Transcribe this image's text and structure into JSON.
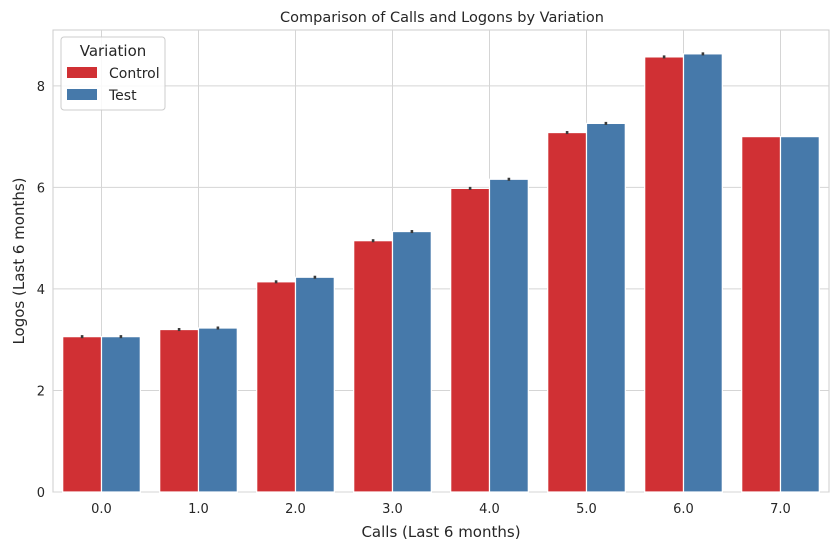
{
  "chart_data": {
    "type": "bar",
    "title": "Comparison of Calls and Logons by Variation",
    "xlabel": "Calls (Last 6 months)",
    "ylabel": "Logos (Last 6 months)",
    "categories": [
      "0.0",
      "1.0",
      "2.0",
      "3.0",
      "4.0",
      "5.0",
      "6.0",
      "7.0"
    ],
    "yticks": [
      "0",
      "2",
      "4",
      "6",
      "8"
    ],
    "ylim": [
      0,
      9.1
    ],
    "grid": true,
    "legend": {
      "title": "Variation",
      "placement": "top-left"
    },
    "series": [
      {
        "name": "Control",
        "color": "#d03034",
        "values": [
          3.06,
          3.2,
          4.14,
          4.95,
          5.98,
          7.08,
          8.57,
          7.0
        ],
        "error": [
          0.03,
          0.03,
          0.03,
          0.03,
          0.03,
          0.03,
          0.03,
          0.0
        ]
      },
      {
        "name": "Test",
        "color": "#4679aa",
        "values": [
          3.06,
          3.23,
          4.23,
          5.13,
          6.16,
          7.26,
          8.63,
          7.0
        ],
        "error": [
          0.03,
          0.03,
          0.03,
          0.03,
          0.03,
          0.03,
          0.03,
          0.0
        ]
      }
    ]
  }
}
